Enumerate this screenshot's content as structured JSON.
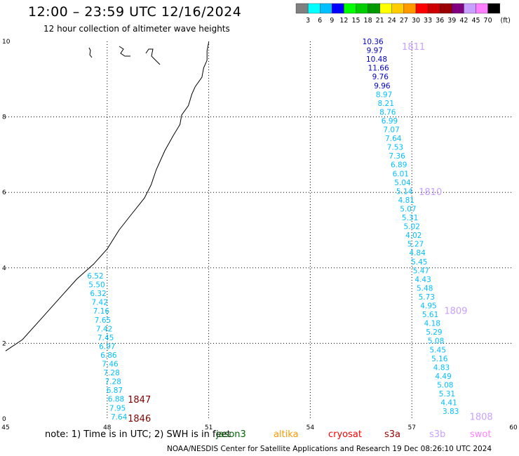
{
  "header": {
    "title": "12:00 – 23:59 UTC 12/16/2024",
    "subtitle": "12 hour collection of altimeter wave heights"
  },
  "legend": {
    "unit": "(ft)",
    "colors": [
      "#808080",
      "#00ffff",
      "#00bfff",
      "#0000ff",
      "#00ff00",
      "#00cc00",
      "#009900",
      "#ffff00",
      "#ffcc00",
      "#ff9900",
      "#ff0000",
      "#cc0000",
      "#990000",
      "#800080",
      "#c8a0ff",
      "#ff80ff",
      "#000000"
    ],
    "ticks": [
      "3",
      "6",
      "9",
      "12",
      "15",
      "18",
      "21",
      "24",
      "27",
      "30",
      "33",
      "36",
      "39",
      "42",
      "45",
      "70"
    ]
  },
  "axes": {
    "x_ticks": [
      "45",
      "48",
      "51",
      "54",
      "57",
      "60"
    ],
    "y_ticks": [
      "0",
      "2",
      "4",
      "6",
      "8",
      "10"
    ]
  },
  "tracks": [
    {
      "name": "track-east",
      "values": [
        "10.36",
        "9.97",
        "10.48",
        "11.66",
        "9.76",
        "9.96",
        "8.97",
        "8.21",
        "8.76",
        "6.99",
        "7.07",
        "7.64",
        "7.53",
        "7.36",
        "6.89",
        "6.01",
        "5.04",
        "5.14",
        "4.81",
        "5.07",
        "5.31",
        "5.02",
        "4.02",
        "5.27",
        "4.84",
        "5.45",
        "5.47",
        "4.43",
        "5.48",
        "5.73",
        "4.95",
        "5.61",
        "4.18",
        "5.29",
        "5.08",
        "5.45",
        "5.16",
        "4.83",
        "4.49",
        "5.08",
        "5.31",
        "4.41",
        "3.83"
      ],
      "lon_start": 55.85,
      "lon_end": 58.15
    },
    {
      "name": "track-west",
      "values": [
        "6.52",
        "5.50",
        "6.32",
        "7.42",
        "7.16",
        "7.65",
        "7.42",
        "7.45",
        "6.97",
        "6.86",
        "7.46",
        "7.28",
        "7.28",
        "6.87",
        "6.88",
        "7.95",
        "7.64"
      ],
      "lon_start": 47.65,
      "lon_end": 48.35
    }
  ],
  "time_labels": [
    {
      "text": "1811",
      "lon": 57.05,
      "lat": 9.85,
      "color": "#c8a0ff"
    },
    {
      "text": "1810",
      "lon": 57.55,
      "lat": 6.0,
      "color": "#c8a0ff"
    },
    {
      "text": "1809",
      "lon": 58.3,
      "lat": 2.85,
      "color": "#c8a0ff"
    },
    {
      "text": "1808",
      "lon": 59.05,
      "lat": 0.05,
      "color": "#c8a0ff"
    },
    {
      "text": "1847",
      "lon": 48.95,
      "lat": 0.5,
      "color": "#800000"
    },
    {
      "text": "1846",
      "lon": 48.95,
      "lat": 0.0,
      "color": "#800000"
    }
  ],
  "footer": {
    "note": "note:  1) Time is in UTC;  2) SWH is in feet",
    "missions": [
      {
        "name": "jason3",
        "color": "#006400"
      },
      {
        "name": "altika",
        "color": "#ff9900"
      },
      {
        "name": "cryosat",
        "color": "#ff0000"
      },
      {
        "name": "s3a",
        "color": "#990000"
      },
      {
        "name": "s3b",
        "color": "#c8a0ff"
      },
      {
        "name": "swot",
        "color": "#ff80ff"
      }
    ],
    "credit": "NOAA/NESDIS Center for Satellite Applications and Research    19 Dec 08:26:10 UTC 2024"
  }
}
